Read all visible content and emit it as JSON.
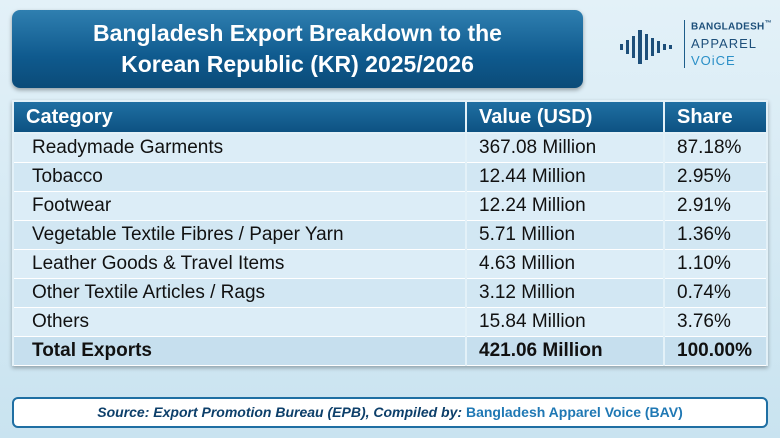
{
  "header": {
    "title_line1": "Bangladesh Export Breakdown to the",
    "title_line2": "Korean Republic (KR) 2025/2026"
  },
  "logo": {
    "line1": "BANGLADESH",
    "trademark": "™",
    "line2": "APPAREL",
    "line3": "VOiCE"
  },
  "table": {
    "columns": [
      "Category",
      "Value (USD)",
      "Share"
    ],
    "rows": [
      [
        "Readymade Garments",
        "367.08 Million",
        "87.18%"
      ],
      [
        "Tobacco",
        "12.44 Million",
        "2.95%"
      ],
      [
        "Footwear",
        "12.24 Million",
        "2.91%"
      ],
      [
        "Vegetable Textile Fibres / Paper Yarn",
        "5.71 Million",
        "1.36%"
      ],
      [
        "Leather Goods & Travel Items",
        "4.63 Million",
        "1.10%"
      ],
      [
        "Other Textile Articles / Rags",
        "3.12 Million",
        "0.74%"
      ],
      [
        "Others",
        "15.84 Million",
        "3.76%"
      ],
      [
        "Total Exports",
        "421.06 Million",
        "100.00%"
      ]
    ]
  },
  "footer": {
    "source": "Source: Export Promotion Bureau (EPB), Compiled by:",
    "credit": "Bangladesh Apparel Voice (BAV)"
  }
}
